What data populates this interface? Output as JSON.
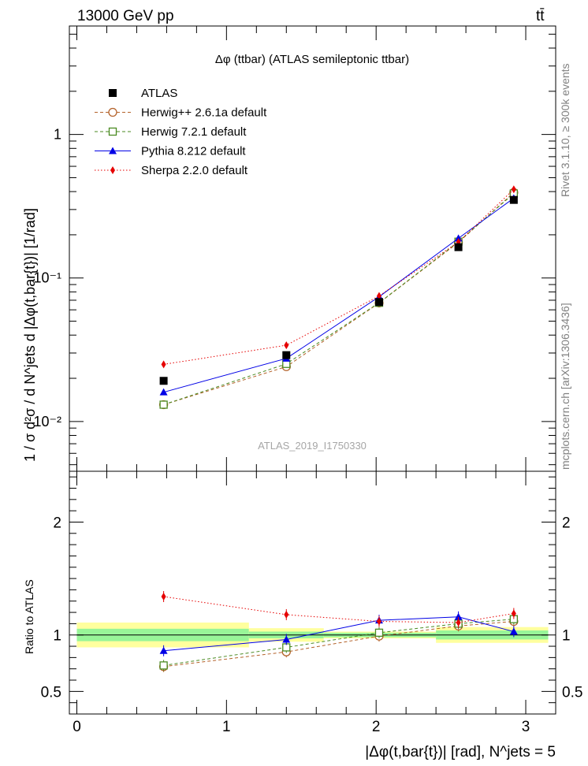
{
  "header": {
    "energy_label": "13000 GeV pp",
    "process_label": "tt̄",
    "plot_title": "Δφ (ttbar) (ATLAS semileptonic ttbar)",
    "analysis_id": "ATLAS_2019_I1750330",
    "side_label_top": "Rivet 3.1.10, ≥ 300k events",
    "side_label_bottom": "mcplots.cern.ch [arXiv:1306.3436]"
  },
  "chart_data": [
    {
      "type": "scatter",
      "panel": "main",
      "title": "Δφ (ttbar) (ATLAS semileptonic ttbar)",
      "ylabel": "1 / σ d²σ / d N^jets d |Δφ(t,bar{t})| [1/rad]",
      "xlabel": "",
      "yscale": "log",
      "ylim": [
        0.0045,
        5.7
      ],
      "xlim": [
        -0.05,
        3.2
      ],
      "ytick_labels": [
        "10⁻²",
        "10⁻¹",
        "1"
      ],
      "ytick_values": [
        0.01,
        0.1,
        1
      ],
      "x": [
        0.58,
        1.4,
        2.02,
        2.55,
        2.92
      ],
      "legend_position": "top-left",
      "series": [
        {
          "name": "ATLAS",
          "marker": "square-filled",
          "color": "#000000",
          "line": "none",
          "values": [
            0.0192,
            0.029,
            0.068,
            0.164,
            0.35
          ]
        },
        {
          "name": "Herwig++ 2.6.1a default",
          "marker": "circle-open",
          "color": "#b4622a",
          "line": "dashed",
          "values": [
            0.0131,
            0.0241,
            0.067,
            0.177,
            0.394
          ]
        },
        {
          "name": "Herwig 7.2.1 default",
          "marker": "square-open",
          "color": "#4a8a21",
          "line": "dashed",
          "values": [
            0.0131,
            0.0252,
            0.0672,
            0.179,
            0.388
          ]
        },
        {
          "name": "Pythia 8.212 default",
          "marker": "triangle-filled",
          "color": "#0000e6",
          "line": "solid",
          "values": [
            0.016,
            0.0275,
            0.074,
            0.189,
            0.36
          ]
        },
        {
          "name": "Sherpa 2.2.0 default",
          "marker": "diamond-filled",
          "color": "#e60000",
          "line": "dotted",
          "values": [
            0.025,
            0.034,
            0.075,
            0.178,
            0.415
          ]
        }
      ]
    },
    {
      "type": "scatter",
      "panel": "ratio",
      "ylabel": "Ratio to ATLAS",
      "xlabel": "|Δφ(t,bar{t})| [rad], N^jets = 5",
      "ylim": [
        0.3,
        2.45
      ],
      "xlim": [
        -0.05,
        3.2
      ],
      "ytick_values": [
        0.5,
        1,
        2
      ],
      "ytick_labels": [
        "0.5",
        "1",
        "2"
      ],
      "xtick_values": [
        0,
        1,
        2,
        3
      ],
      "xtick_labels": [
        "0",
        "1",
        "2",
        "3"
      ],
      "x": [
        0.58,
        1.4,
        2.02,
        2.55,
        2.92
      ],
      "bands": {
        "bin_edges": [
          0,
          1.15,
          1.65,
          2.4,
          3.15
        ],
        "inner_half_width": [
          0.055,
          0.03,
          0.02,
          0.03,
          0.04
        ],
        "outer_half_width": [
          0.11,
          0.06,
          0.03,
          0.07,
          0.07
        ],
        "inner_color": "#98f598",
        "outer_color": "#ffff9e",
        "note": "bands are piecewise over bins [0,1.15],[1.15,1.65],[1.65,2.4],[2.4,3.15]; widths listed per bin with the 4th entry spanning the last bin"
      },
      "series": [
        {
          "name": "Herwig++ 2.6.1a default",
          "values": [
            0.72,
            0.85,
            0.99,
            1.08,
            1.12
          ]
        },
        {
          "name": "Herwig 7.2.1 default",
          "values": [
            0.73,
            0.89,
            1.02,
            1.1,
            1.14
          ]
        },
        {
          "name": "Pythia 8.212 default",
          "values": [
            0.86,
            0.96,
            1.13,
            1.16,
            1.03
          ]
        },
        {
          "name": "Sherpa 2.2.0 default",
          "values": [
            1.34,
            1.18,
            1.12,
            1.11,
            1.19
          ]
        }
      ]
    }
  ]
}
